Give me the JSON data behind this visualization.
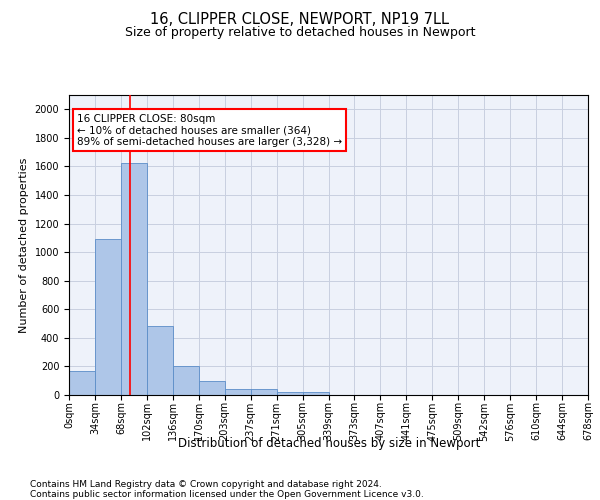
{
  "title": "16, CLIPPER CLOSE, NEWPORT, NP19 7LL",
  "subtitle": "Size of property relative to detached houses in Newport",
  "xlabel": "Distribution of detached houses by size in Newport",
  "ylabel": "Number of detached properties",
  "bar_values": [
    165,
    1090,
    1625,
    480,
    200,
    100,
    45,
    40,
    22,
    20,
    0,
    0,
    0,
    0,
    0,
    0,
    0,
    0,
    0,
    0
  ],
  "bar_color": "#aec6e8",
  "bar_edge_color": "#5b8dc8",
  "categories": [
    "0sqm",
    "34sqm",
    "68sqm",
    "102sqm",
    "136sqm",
    "170sqm",
    "203sqm",
    "237sqm",
    "271sqm",
    "305sqm",
    "339sqm",
    "373sqm",
    "407sqm",
    "441sqm",
    "475sqm",
    "509sqm",
    "542sqm",
    "576sqm",
    "610sqm",
    "644sqm",
    "678sqm"
  ],
  "vline_x": 2.35,
  "vline_color": "red",
  "annotation_text": "16 CLIPPER CLOSE: 80sqm\n← 10% of detached houses are smaller (364)\n89% of semi-detached houses are larger (3,328) →",
  "annotation_box_color": "white",
  "annotation_box_edge_color": "red",
  "ylim": [
    0,
    2100
  ],
  "yticks": [
    0,
    200,
    400,
    600,
    800,
    1000,
    1200,
    1400,
    1600,
    1800,
    2000
  ],
  "grid_color": "#c8cfe0",
  "background_color": "#eef2fa",
  "footer_line1": "Contains HM Land Registry data © Crown copyright and database right 2024.",
  "footer_line2": "Contains public sector information licensed under the Open Government Licence v3.0.",
  "title_fontsize": 10.5,
  "subtitle_fontsize": 9,
  "xlabel_fontsize": 8.5,
  "ylabel_fontsize": 8,
  "tick_fontsize": 7,
  "footer_fontsize": 6.5,
  "annot_fontsize": 7.5
}
